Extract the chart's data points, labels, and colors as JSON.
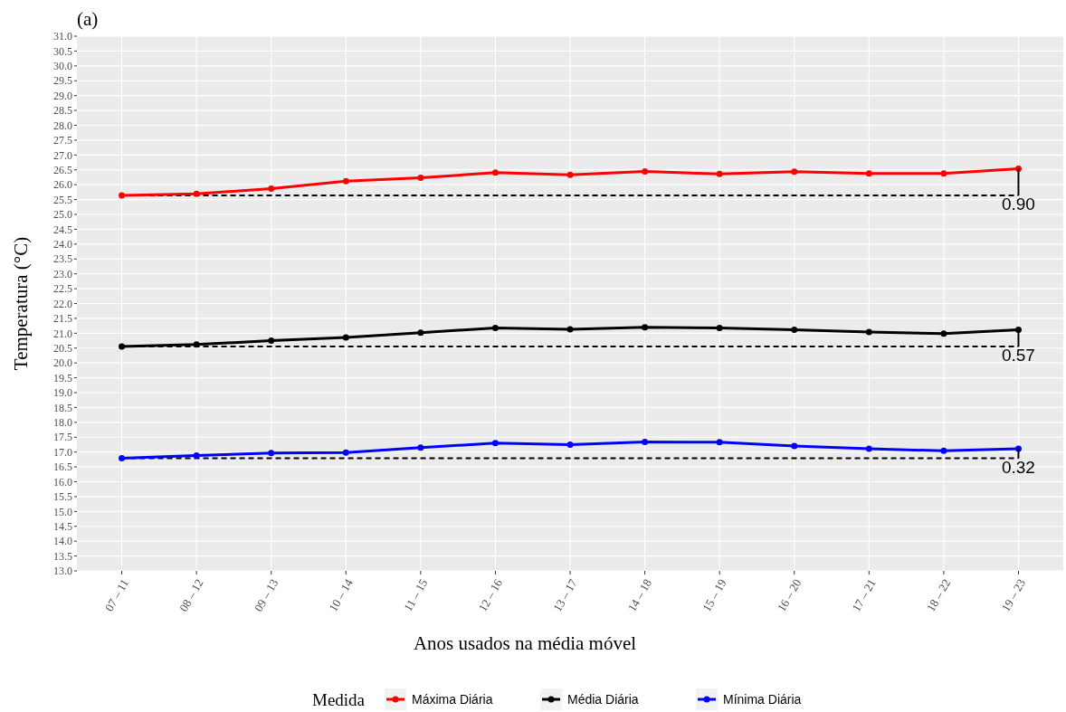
{
  "chart_data": {
    "type": "line",
    "title": "(a)",
    "xlabel": "Anos usados na média móvel",
    "ylabel": "Temperatura (°C)",
    "legend_title": "Medida",
    "categories": [
      "07 – 11",
      "08 – 12",
      "09 – 13",
      "10 – 14",
      "11 – 15",
      "12 – 16",
      "13 – 17",
      "14 – 18",
      "15 – 19",
      "16 – 20",
      "17 – 21",
      "18 – 22",
      "19 – 23"
    ],
    "series": [
      {
        "name": "Máxima Diária",
        "color": "#ff0000",
        "values": [
          25.64,
          25.69,
          25.87,
          26.12,
          26.23,
          26.41,
          26.33,
          26.45,
          26.36,
          26.44,
          26.38,
          26.38,
          26.54
        ]
      },
      {
        "name": "Média Diária",
        "color": "#000000",
        "values": [
          20.55,
          20.62,
          20.75,
          20.86,
          21.02,
          21.18,
          21.13,
          21.2,
          21.18,
          21.12,
          21.04,
          20.99,
          21.12
        ]
      },
      {
        "name": "Mínima Diária",
        "color": "#0000ff",
        "values": [
          16.79,
          16.88,
          16.97,
          16.98,
          17.15,
          17.3,
          17.25,
          17.34,
          17.33,
          17.2,
          17.11,
          17.04,
          17.11
        ]
      }
    ],
    "ref_lines": [
      {
        "axis": "y",
        "value": 25.64,
        "color": "#000000",
        "line_style": "dashed"
      },
      {
        "axis": "y",
        "value": 20.55,
        "color": "#000000",
        "line_style": "dashed"
      },
      {
        "axis": "y",
        "value": 16.79,
        "color": "#000000",
        "line_style": "dashed"
      }
    ],
    "annotations": [
      {
        "text": "0.90",
        "x": "19 – 23",
        "y": 25.64
      },
      {
        "text": "0.57",
        "x": "19 – 23",
        "y": 20.55
      },
      {
        "text": "0.32",
        "x": "19 – 23",
        "y": 16.79
      }
    ],
    "ylim": [
      13,
      31
    ],
    "yticks": [
      {
        "value": 13,
        "label": "13.0"
      },
      13.5,
      {
        "value": 14,
        "label": "14.0"
      },
      14.5,
      {
        "value": 15,
        "label": "15.0"
      },
      15.5,
      {
        "value": 16,
        "label": "16.0"
      },
      16.5,
      {
        "value": 17,
        "label": "17.0"
      },
      17.5,
      {
        "value": 18,
        "label": "18.0"
      },
      18.5,
      {
        "value": 19,
        "label": "19.0"
      },
      19.5,
      {
        "value": 20,
        "label": "20.0"
      },
      20.5,
      {
        "value": 21,
        "label": "21.0"
      },
      21.5,
      {
        "value": 22,
        "label": "22.0"
      },
      22.5,
      {
        "value": 23,
        "label": "23.0"
      },
      23.5,
      {
        "value": 24,
        "label": "24.0"
      },
      24.5,
      {
        "value": 25,
        "label": "25.0"
      },
      25.5,
      {
        "value": 26,
        "label": "26.0"
      },
      26.5,
      {
        "value": 27,
        "label": "27.0"
      },
      27.5,
      {
        "value": 28,
        "label": "28.0"
      },
      28.5,
      {
        "value": 29,
        "label": "29.0"
      },
      29.5,
      {
        "value": 30,
        "label": "30.0"
      },
      30.5,
      {
        "value": 31,
        "label": "31.0"
      }
    ],
    "grid": true,
    "legend": "bottom",
    "marker": "circle",
    "line_style": "solid"
  }
}
